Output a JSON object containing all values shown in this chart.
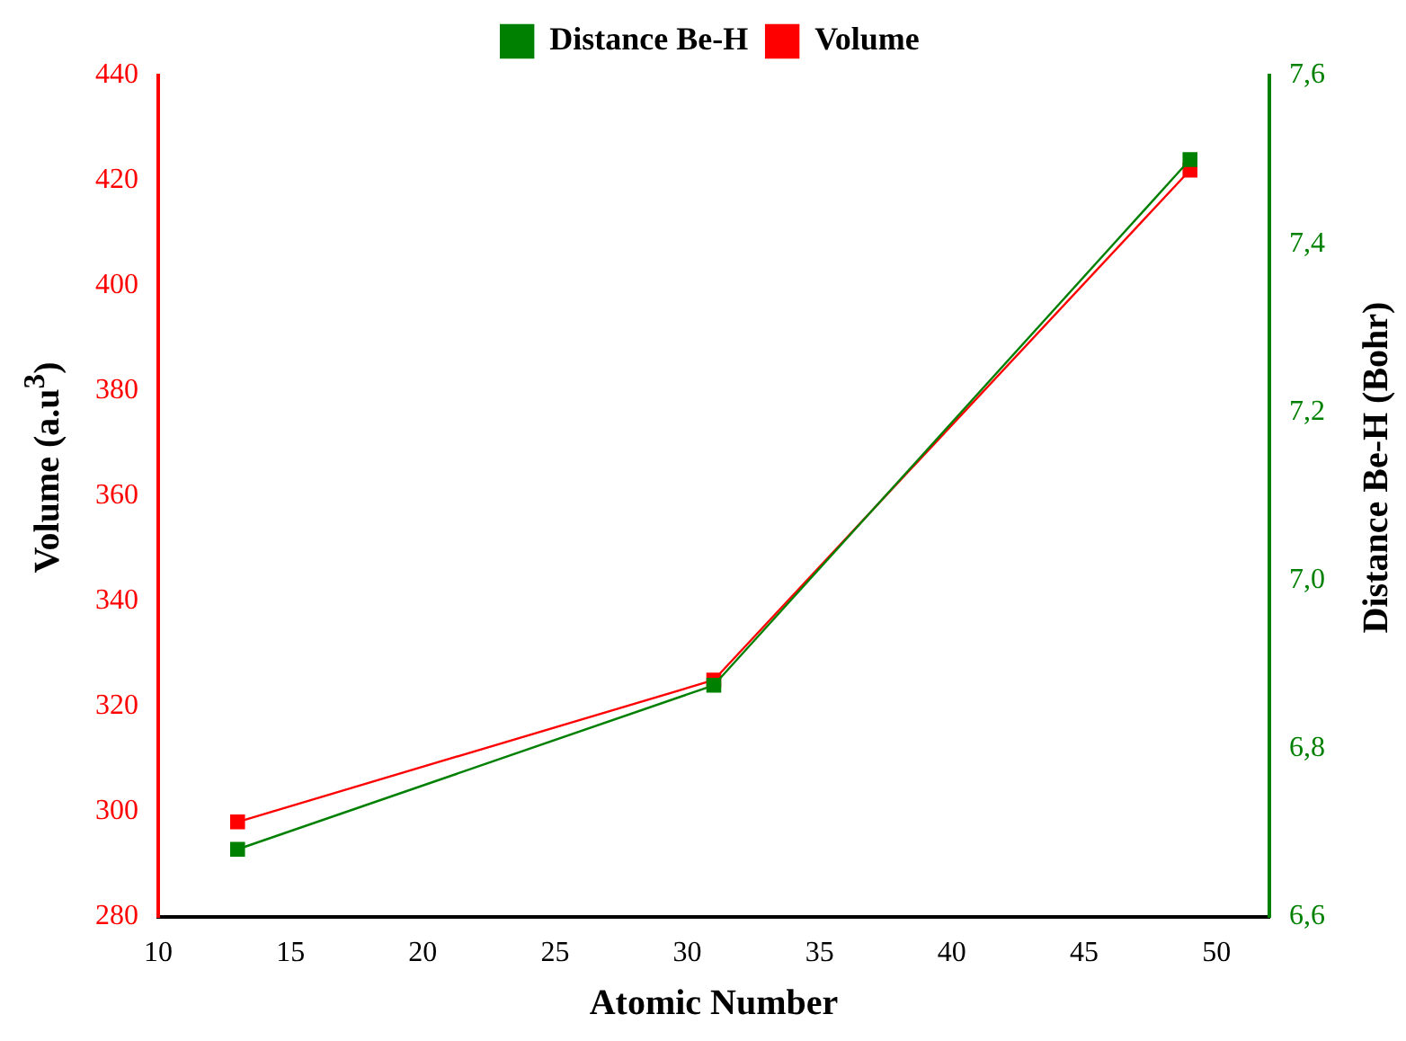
{
  "chart_data": {
    "type": "line",
    "xlabel": "Atomic Number",
    "ylabel": "Volume (a.u$^{3}$)",
    "y2label": "Distance Be-H (Bohr)",
    "x": [
      13,
      31,
      49
    ],
    "series": [
      {
        "name": "Volume",
        "color": "#ff0000",
        "values": [
          298,
          325,
          422
        ]
      },
      {
        "name": "Distance Be-H",
        "color": "#008000",
        "values": [
          6.68,
          6.875,
          7.5
        ],
        "axis": "y2"
      }
    ],
    "xlim": [
      10,
      52
    ],
    "xticks": [
      10,
      15,
      20,
      25,
      30,
      35,
      40,
      45,
      50
    ],
    "ylim": [
      280,
      440
    ],
    "yticks": [
      280,
      300,
      320,
      340,
      360,
      380,
      400,
      420,
      440
    ],
    "y2lim": [
      6.6,
      7.6
    ],
    "y2ticks": [
      {
        "value": 6.6,
        "label": "6,6"
      },
      {
        "value": 6.8,
        "label": "6,8"
      },
      {
        "value": 7.0,
        "label": "7,0"
      },
      {
        "value": 7.2,
        "label": "7,2"
      },
      {
        "value": 7.4,
        "label": "7,4"
      },
      {
        "value": 7.6,
        "label": "7,6"
      }
    ],
    "legend": "top",
    "marker": "square",
    "line_style": "solid",
    "grid": false
  }
}
